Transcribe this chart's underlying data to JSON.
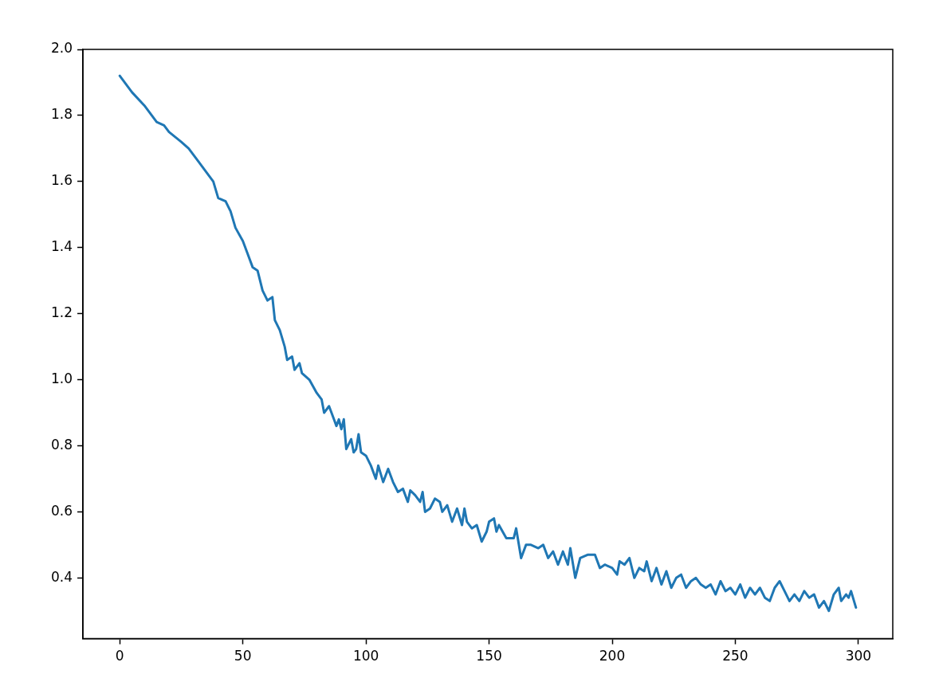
{
  "chart_data": {
    "type": "line",
    "grid": false,
    "legend": false,
    "marker": "none",
    "line_style": "solid",
    "xlim": [
      -14.95,
      313.95
    ],
    "xticks": [
      0,
      50,
      100,
      150,
      200,
      250,
      300
    ],
    "ylim": [
      0.216,
      2.0
    ],
    "yticks": [
      {
        "value": 0.4,
        "label": "0.4"
      },
      {
        "value": 0.6,
        "label": "0.6"
      },
      {
        "value": 0.8,
        "label": "0.8"
      },
      {
        "value": 1.0,
        "label": "1.0"
      },
      {
        "value": 1.2,
        "label": "1.2"
      },
      {
        "value": 1.4,
        "label": "1.4"
      },
      {
        "value": 1.6,
        "label": "1.6"
      },
      {
        "value": 1.8,
        "label": "1.8"
      },
      {
        "value": 2.0,
        "label": "2.0"
      }
    ],
    "series": [
      {
        "color": "#1f77b4",
        "x": [
          0,
          5,
          10,
          15,
          18,
          20,
          25,
          28,
          30,
          32,
          35,
          38,
          40,
          43,
          45,
          47,
          50,
          52,
          54,
          56,
          58,
          60,
          62,
          63,
          65,
          67,
          68,
          70,
          71,
          73,
          74,
          77,
          80,
          82,
          83,
          85,
          87,
          88,
          89,
          90,
          91,
          92,
          94,
          95,
          96,
          97,
          98,
          100,
          102,
          104,
          105,
          107,
          109,
          111,
          113,
          115,
          117,
          118,
          120,
          122,
          123,
          124,
          126,
          128,
          130,
          131,
          133,
          135,
          137,
          139,
          140,
          141,
          143,
          145,
          147,
          149,
          150,
          152,
          153,
          154,
          157,
          160,
          161,
          163,
          165,
          167,
          170,
          172,
          174,
          176,
          178,
          180,
          182,
          183,
          185,
          187,
          190,
          193,
          195,
          197,
          200,
          202,
          203,
          205,
          207,
          209,
          211,
          213,
          214,
          216,
          218,
          220,
          222,
          224,
          226,
          228,
          230,
          232,
          234,
          236,
          238,
          240,
          242,
          244,
          246,
          248,
          250,
          252,
          254,
          256,
          258,
          260,
          262,
          264,
          266,
          268,
          270,
          272,
          274,
          276,
          278,
          280,
          282,
          284,
          286,
          288,
          290,
          292,
          293,
          295,
          296,
          297,
          299
        ],
        "values": [
          1.92,
          1.87,
          1.83,
          1.78,
          1.77,
          1.75,
          1.72,
          1.7,
          1.68,
          1.66,
          1.63,
          1.6,
          1.55,
          1.54,
          1.51,
          1.46,
          1.42,
          1.38,
          1.34,
          1.33,
          1.27,
          1.24,
          1.25,
          1.18,
          1.15,
          1.1,
          1.06,
          1.07,
          1.03,
          1.05,
          1.02,
          1.0,
          0.96,
          0.94,
          0.9,
          0.92,
          0.88,
          0.86,
          0.88,
          0.85,
          0.88,
          0.79,
          0.82,
          0.78,
          0.79,
          0.835,
          0.78,
          0.77,
          0.74,
          0.7,
          0.74,
          0.69,
          0.73,
          0.69,
          0.66,
          0.67,
          0.63,
          0.665,
          0.65,
          0.63,
          0.66,
          0.6,
          0.61,
          0.64,
          0.63,
          0.6,
          0.62,
          0.57,
          0.61,
          0.56,
          0.61,
          0.57,
          0.55,
          0.56,
          0.51,
          0.54,
          0.57,
          0.58,
          0.54,
          0.56,
          0.52,
          0.52,
          0.55,
          0.46,
          0.5,
          0.5,
          0.49,
          0.5,
          0.46,
          0.48,
          0.44,
          0.48,
          0.44,
          0.49,
          0.4,
          0.46,
          0.47,
          0.47,
          0.43,
          0.44,
          0.43,
          0.41,
          0.45,
          0.44,
          0.46,
          0.4,
          0.43,
          0.42,
          0.45,
          0.39,
          0.43,
          0.38,
          0.42,
          0.37,
          0.4,
          0.41,
          0.37,
          0.39,
          0.4,
          0.38,
          0.37,
          0.38,
          0.35,
          0.39,
          0.36,
          0.37,
          0.35,
          0.38,
          0.34,
          0.37,
          0.35,
          0.37,
          0.34,
          0.33,
          0.37,
          0.39,
          0.36,
          0.33,
          0.35,
          0.33,
          0.36,
          0.34,
          0.35,
          0.31,
          0.33,
          0.3,
          0.35,
          0.37,
          0.33,
          0.35,
          0.34,
          0.36,
          0.31
        ]
      }
    ]
  }
}
